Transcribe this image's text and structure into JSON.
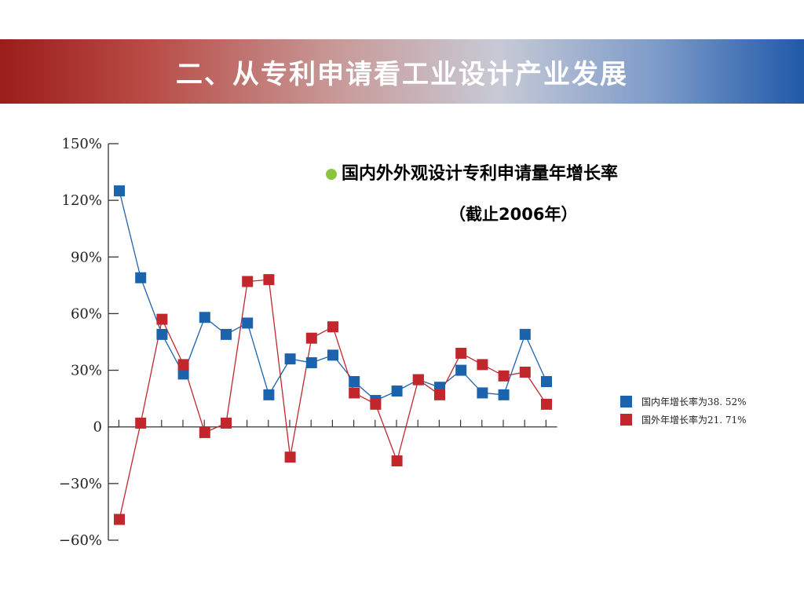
{
  "header": {
    "title": "二、从专利申请看工业设计产业发展"
  },
  "annotation": {
    "title": "国内外外观设计专利申请量年增长率",
    "subtitle": "（截止2006年）"
  },
  "legend": [
    {
      "label": "国内年增长率为38. 52%",
      "color": "#1b63ad"
    },
    {
      "label": "国外年增长率为21. 71%",
      "color": "#c1272d"
    }
  ],
  "chart_data": {
    "type": "line",
    "title": "国内外外观设计专利申请量年增长率",
    "subtitle": "（截止2006年）",
    "xlabel": "",
    "ylabel": "",
    "ylim": [
      -60,
      150
    ],
    "y_ticks": [
      150,
      120,
      90,
      60,
      30,
      0,
      -30,
      -60
    ],
    "y_tick_labels": [
      "150%",
      "120%",
      "90%",
      "60%",
      "30%",
      "0",
      "−30%",
      "−60%"
    ],
    "x": [
      1,
      2,
      3,
      4,
      5,
      6,
      7,
      8,
      9,
      10,
      11,
      12,
      13,
      14,
      15,
      16,
      17,
      18,
      19,
      20,
      21
    ],
    "series": [
      {
        "name": "国内年增长率为38. 52%",
        "color": "#1b63ad",
        "values": [
          125,
          79,
          49,
          28,
          58,
          49,
          55,
          17,
          36,
          34,
          38,
          24,
          14,
          19,
          25,
          21,
          30,
          18,
          17,
          49,
          24
        ]
      },
      {
        "name": "国外年增长率为21. 71%",
        "color": "#c1272d",
        "values": [
          -49,
          2,
          57,
          33,
          -3,
          2,
          77,
          78,
          -16,
          47,
          53,
          18,
          12,
          -18,
          25,
          17,
          39,
          33,
          27,
          29,
          12
        ]
      }
    ],
    "grid": false,
    "legend_position": "right"
  }
}
